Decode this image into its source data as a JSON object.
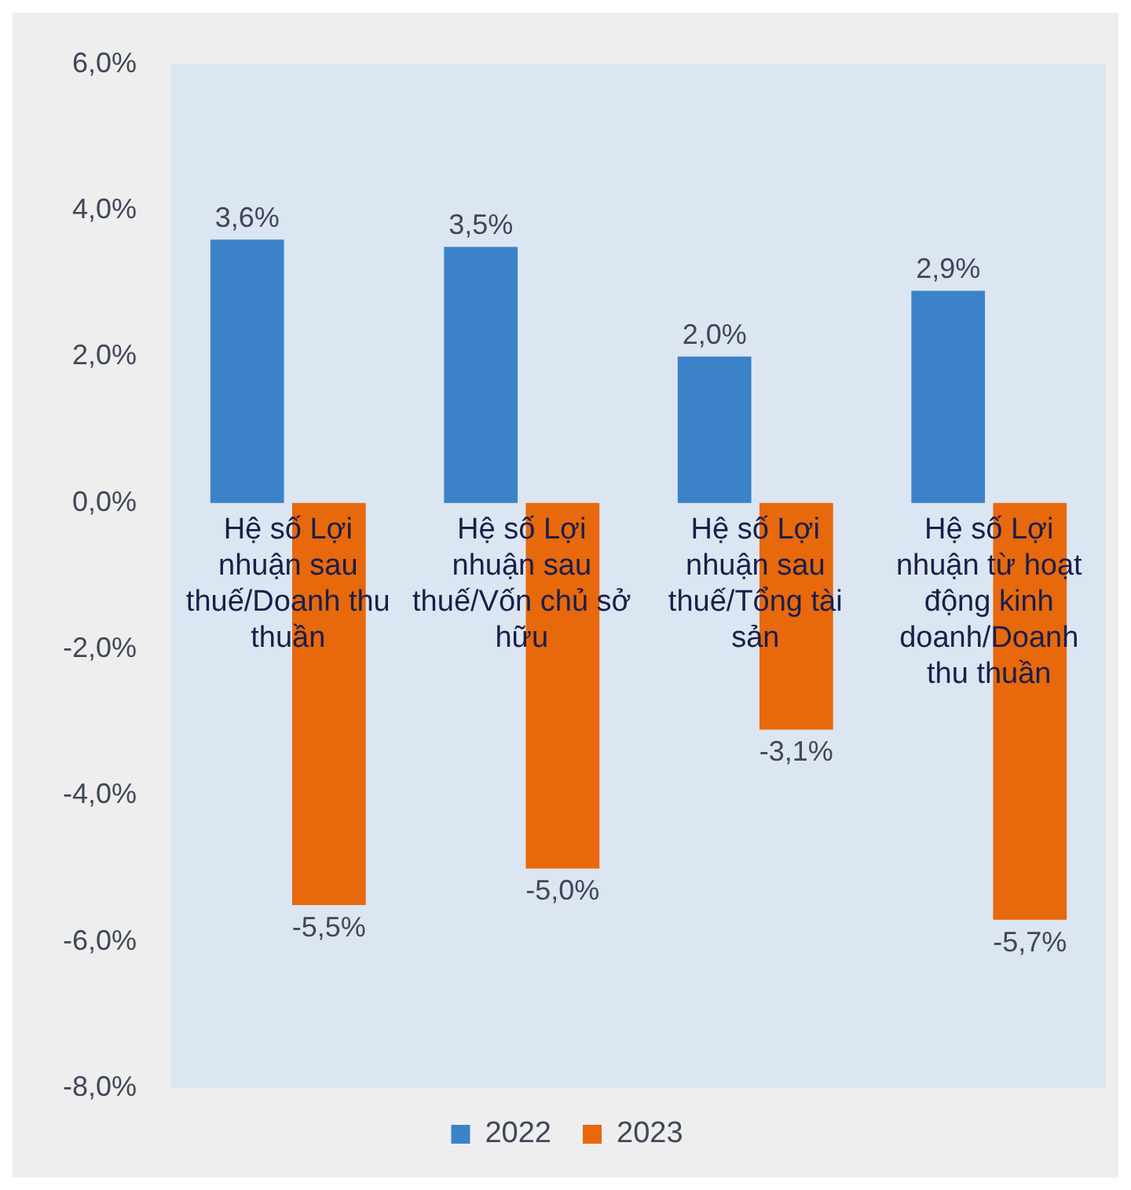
{
  "chart_data": {
    "type": "bar",
    "categories": [
      "Hệ số Lợi nhuận sau thuế/Doanh thu thuần",
      "Hệ số Lợi nhuận sau thuế/Vốn chủ sở hữu",
      "Hệ số Lợi nhuận sau thuế/Tổng tài sản",
      "Hệ số Lợi nhuận từ hoạt động kinh doanh/Doanh thu thuần"
    ],
    "series": [
      {
        "name": "2022",
        "color": "#3b82c8",
        "values": [
          3.6,
          3.5,
          2.0,
          2.9
        ],
        "value_labels": [
          "3,6%",
          "3,5%",
          "2,0%",
          "2,9%"
        ]
      },
      {
        "name": "2023",
        "color": "#e8680c",
        "values": [
          -5.5,
          -5.0,
          -3.1,
          -5.7
        ],
        "value_labels": [
          "-5,5%",
          "-5,0%",
          "-3,1%",
          "-5,7%"
        ]
      }
    ],
    "ylim": [
      -8,
      6
    ],
    "yticks": [
      {
        "value": -8,
        "label": "-8,0%"
      },
      {
        "value": -6,
        "label": "-6,0%"
      },
      {
        "value": -4,
        "label": "-4,0%"
      },
      {
        "value": -2,
        "label": "-2,0%"
      },
      {
        "value": 0,
        "label": "0,0%"
      },
      {
        "value": 2,
        "label": "2,0%"
      },
      {
        "value": 4,
        "label": "4,0%"
      },
      {
        "value": 6,
        "label": "6,0%"
      }
    ],
    "grid": false,
    "legend": "bottom"
  }
}
